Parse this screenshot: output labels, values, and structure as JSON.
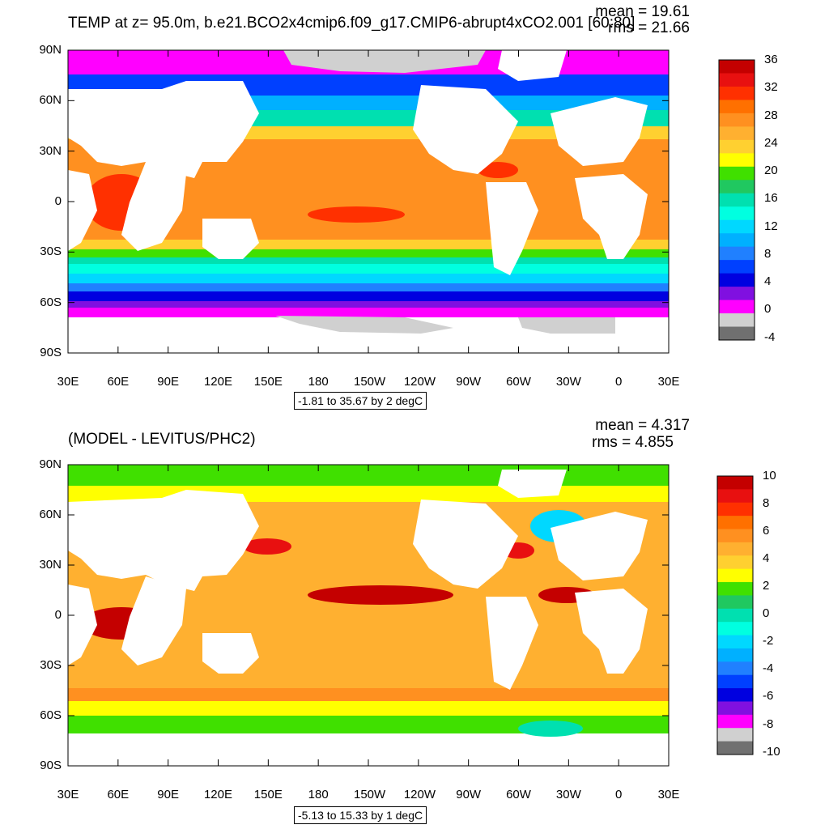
{
  "panels": [
    {
      "title": "TEMP at z=  95.0m, b.e21.BCO2x4cmip6.f09_g17.CMIP6-abrupt4xCO2.001 [60:80]",
      "mean": "mean = 19.61",
      "rms": "rms = 21.66",
      "range": "-1.81 to 35.67 by 2 degC",
      "lat_ticks": [
        "90N",
        "60N",
        "30N",
        "0",
        "30S",
        "60S",
        "90S"
      ],
      "lon_ticks": [
        "30E",
        "60E",
        "90E",
        "120E",
        "150E",
        "180",
        "150W",
        "120W",
        "90W",
        "60W",
        "30W",
        "0",
        "30E"
      ],
      "colorbar_labels": [
        "36",
        "32",
        "28",
        "24",
        "20",
        "16",
        "12",
        "8",
        "4",
        "0",
        "-4"
      ],
      "colorbar_colors": [
        "#c40000",
        "#e81010",
        "#ff3000",
        "#ff7000",
        "#ff9020",
        "#ffb030",
        "#ffd030",
        "#ffff00",
        "#40e000",
        "#20c860",
        "#00e0b0",
        "#00ffe0",
        "#00d8ff",
        "#00b0ff",
        "#2080ff",
        "#0040ff",
        "#0000e0",
        "#8010e0",
        "#ff00ff",
        "#d0d0d0",
        "#707070"
      ]
    },
    {
      "title": "(MODEL - LEVITUS/PHC2)",
      "mean": "mean = 4.317",
      "rms": "rms = 4.855",
      "range": "-5.13 to 15.33 by 1 degC",
      "lat_ticks": [
        "90N",
        "60N",
        "30N",
        "0",
        "30S",
        "60S",
        "90S"
      ],
      "lon_ticks": [
        "30E",
        "60E",
        "90E",
        "120E",
        "150E",
        "180",
        "150W",
        "120W",
        "90W",
        "60W",
        "30W",
        "0",
        "30E"
      ],
      "colorbar_labels": [
        "10",
        "8",
        "6",
        "4",
        "2",
        "0",
        "-2",
        "-4",
        "-6",
        "-8",
        "-10"
      ],
      "colorbar_colors": [
        "#c40000",
        "#e81010",
        "#ff3000",
        "#ff7000",
        "#ff9020",
        "#ffb030",
        "#ffd030",
        "#ffff00",
        "#40e000",
        "#20c860",
        "#00e0b0",
        "#00ffe0",
        "#00d8ff",
        "#00b0ff",
        "#2080ff",
        "#0040ff",
        "#0000e0",
        "#8010e0",
        "#ff00ff",
        "#d0d0d0",
        "#707070"
      ]
    }
  ]
}
